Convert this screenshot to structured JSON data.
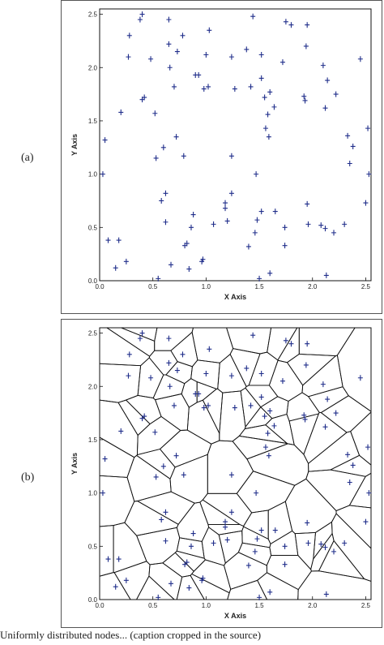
{
  "panels": [
    {
      "label": "(a)",
      "kind": "scatter",
      "x_axis_label": "X Axis",
      "y_axis_label": "Y Axis",
      "x_ticks": [
        "0.0",
        "0.5",
        "1.0",
        "1.5",
        "2.0",
        "2.5"
      ],
      "y_ticks": [
        "0.0",
        "0.5",
        "1.0",
        "1.5",
        "2.0",
        "2.5"
      ],
      "marker_color": "#1f2d8a"
    },
    {
      "label": "(b)",
      "kind": "voronoi",
      "x_axis_label": "X Axis",
      "y_axis_label": "Y Axis",
      "x_ticks": [
        "0.0",
        "0.5",
        "1.0",
        "1.5",
        "2.0",
        "2.5"
      ],
      "y_ticks": [
        "0.0",
        "0.5",
        "1.0",
        "1.5",
        "2.0",
        "2.5"
      ],
      "marker_color": "#1f2d8a"
    }
  ],
  "chart_data": [
    {
      "type": "scatter",
      "title": "",
      "xlabel": "X Axis",
      "ylabel": "Y Axis",
      "xlim": [
        0,
        2.55
      ],
      "ylim": [
        0,
        2.55
      ],
      "grid": false,
      "series": [
        {
          "points": [
            [
              0.03,
              1.0
            ],
            [
              0.05,
              1.32
            ],
            [
              0.08,
              0.38
            ],
            [
              0.15,
              0.12
            ],
            [
              0.18,
              0.38
            ],
            [
              0.2,
              1.58
            ],
            [
              0.25,
              0.18
            ],
            [
              0.27,
              2.1
            ],
            [
              0.28,
              2.3
            ],
            [
              0.38,
              2.45
            ],
            [
              0.4,
              2.5
            ],
            [
              0.4,
              1.7
            ],
            [
              0.42,
              1.72
            ],
            [
              0.48,
              2.08
            ],
            [
              0.52,
              1.57
            ],
            [
              0.53,
              1.15
            ],
            [
              0.55,
              0.02
            ],
            [
              0.58,
              0.75
            ],
            [
              0.6,
              1.25
            ],
            [
              0.62,
              0.55
            ],
            [
              0.62,
              0.82
            ],
            [
              0.65,
              2.45
            ],
            [
              0.65,
              2.22
            ],
            [
              0.66,
              2.0
            ],
            [
              0.67,
              0.15
            ],
            [
              0.7,
              1.82
            ],
            [
              0.72,
              1.35
            ],
            [
              0.73,
              2.15
            ],
            [
              0.78,
              2.3
            ],
            [
              0.79,
              1.17
            ],
            [
              0.8,
              0.33
            ],
            [
              0.82,
              0.35
            ],
            [
              0.84,
              0.11
            ],
            [
              0.86,
              0.5
            ],
            [
              0.88,
              0.62
            ],
            [
              0.9,
              1.93
            ],
            [
              0.93,
              1.93
            ],
            [
              0.96,
              0.18
            ],
            [
              0.97,
              0.2
            ],
            [
              0.98,
              1.8
            ],
            [
              1.0,
              2.12
            ],
            [
              1.02,
              1.82
            ],
            [
              1.03,
              2.35
            ],
            [
              1.07,
              0.53
            ],
            [
              1.18,
              0.73
            ],
            [
              1.18,
              0.68
            ],
            [
              1.2,
              0.56
            ],
            [
              1.24,
              0.82
            ],
            [
              1.24,
              1.17
            ],
            [
              1.24,
              2.1
            ],
            [
              1.27,
              1.8
            ],
            [
              1.38,
              2.17
            ],
            [
              1.4,
              0.32
            ],
            [
              1.42,
              1.82
            ],
            [
              1.44,
              2.48
            ],
            [
              1.46,
              0.45
            ],
            [
              1.47,
              1.0
            ],
            [
              1.48,
              0.57
            ],
            [
              1.5,
              0.02
            ],
            [
              1.52,
              2.12
            ],
            [
              1.52,
              1.9
            ],
            [
              1.52,
              0.65
            ],
            [
              1.55,
              1.72
            ],
            [
              1.56,
              1.43
            ],
            [
              1.58,
              1.56
            ],
            [
              1.59,
              1.35
            ],
            [
              1.6,
              0.07
            ],
            [
              1.6,
              1.77
            ],
            [
              1.64,
              1.63
            ],
            [
              1.65,
              0.65
            ],
            [
              1.72,
              2.05
            ],
            [
              1.74,
              0.5
            ],
            [
              1.74,
              0.33
            ],
            [
              1.75,
              2.43
            ],
            [
              1.8,
              2.4
            ],
            [
              1.92,
              1.73
            ],
            [
              1.93,
              1.69
            ],
            [
              1.94,
              2.2
            ],
            [
              1.95,
              2.4
            ],
            [
              1.95,
              0.72
            ],
            [
              1.96,
              0.53
            ],
            [
              2.08,
              0.52
            ],
            [
              2.1,
              2.02
            ],
            [
              2.12,
              1.62
            ],
            [
              2.12,
              0.49
            ],
            [
              2.13,
              0.05
            ],
            [
              2.14,
              1.88
            ],
            [
              2.2,
              0.45
            ],
            [
              2.22,
              1.75
            ],
            [
              2.3,
              0.53
            ],
            [
              2.33,
              1.36
            ],
            [
              2.35,
              1.1
            ],
            [
              2.38,
              1.26
            ],
            [
              2.45,
              2.08
            ],
            [
              2.5,
              0.73
            ],
            [
              2.52,
              1.43
            ],
            [
              2.53,
              1.0
            ]
          ]
        }
      ]
    }
  ]
}
